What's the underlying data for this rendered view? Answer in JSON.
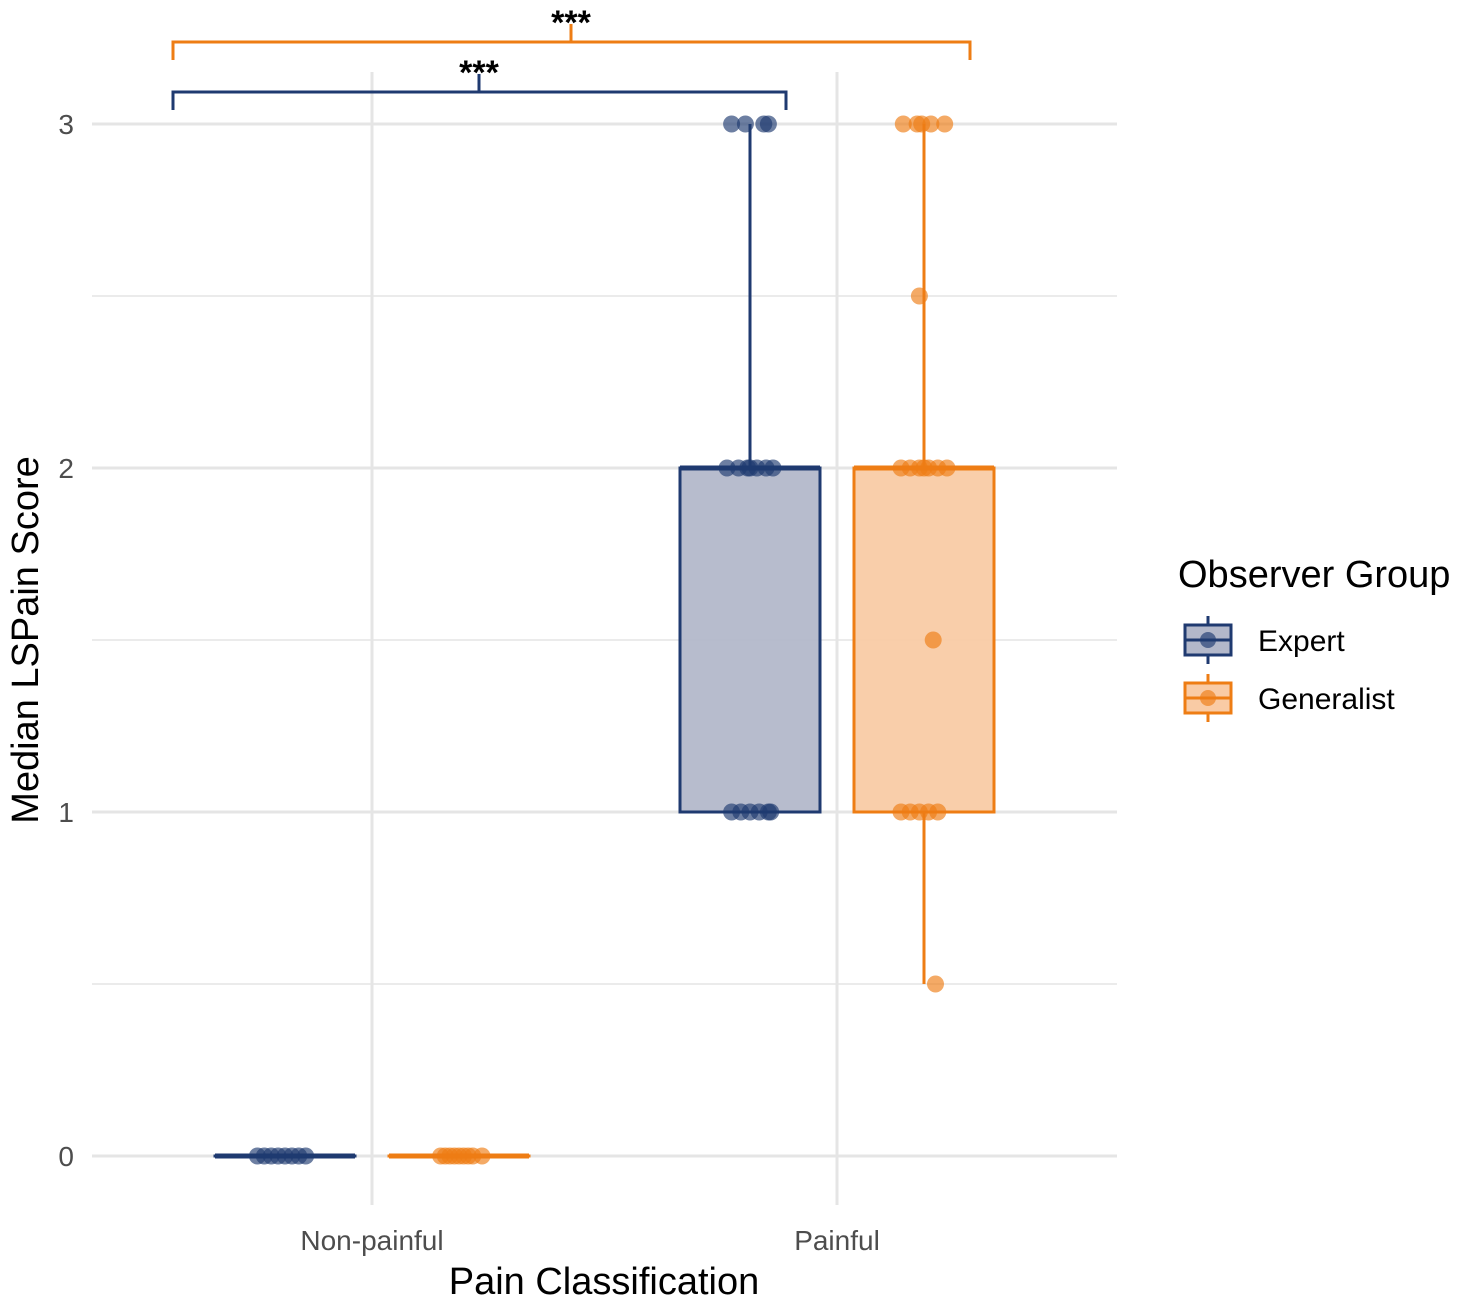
{
  "chart_data": {
    "type": "boxplot",
    "xlabel": "Pain Classification",
    "ylabel": "Median LSPain Score",
    "categories": [
      "Non-painful",
      "Painful"
    ],
    "ylim": [
      -0.15,
      3.1
    ],
    "y_ticks": [
      0,
      1,
      2,
      3
    ],
    "y_minor_ticks": [
      0.5,
      1.5,
      2.5
    ],
    "grid": true,
    "legend": {
      "title": "Observer Group",
      "position": "right"
    },
    "series": [
      {
        "name": "Expert",
        "color": "#1f3a70",
        "fill": "#b3b8ca",
        "boxes": [
          {
            "category": "Non-painful",
            "min": 0,
            "q1": 0,
            "median": 0,
            "q3": 0,
            "max": 0
          },
          {
            "category": "Painful",
            "min": 1,
            "q1": 1,
            "median": 2,
            "q3": 2,
            "max": 3
          }
        ],
        "points": [
          {
            "category": "Non-painful",
            "values": [
              0,
              0,
              0,
              0,
              0,
              0,
              0,
              0
            ],
            "jitter": [
              -0.12,
              -0.09,
              -0.06,
              -0.03,
              0.0,
              0.03,
              0.06,
              0.09
            ]
          },
          {
            "category": "Painful",
            "values": [
              3,
              3,
              3,
              3,
              2,
              2,
              2,
              2,
              2,
              2,
              2,
              1,
              1,
              1,
              1,
              1,
              1
            ],
            "jitter": [
              -0.08,
              -0.02,
              0.06,
              0.08,
              -0.1,
              -0.05,
              -0.01,
              0.03,
              0.07,
              0.1,
              0.0,
              -0.08,
              -0.04,
              0.0,
              0.04,
              0.08,
              0.09
            ]
          }
        ]
      },
      {
        "name": "Generalist",
        "color": "#ee7d14",
        "fill": "#f9cba5",
        "boxes": [
          {
            "category": "Non-painful",
            "min": 0,
            "q1": 0,
            "median": 0,
            "q3": 0,
            "max": 0
          },
          {
            "category": "Painful",
            "min": 0.5,
            "q1": 1,
            "median": 2,
            "q3": 2,
            "max": 3
          }
        ],
        "points": [
          {
            "category": "Non-painful",
            "values": [
              0,
              0,
              0,
              0,
              0,
              0,
              0,
              0,
              0
            ],
            "jitter": [
              -0.08,
              -0.06,
              -0.04,
              -0.02,
              0.0,
              0.02,
              0.04,
              0.06,
              0.1
            ]
          },
          {
            "category": "Painful",
            "values": [
              3,
              3,
              3,
              3,
              3,
              2.5,
              2,
              2,
              2,
              2,
              2,
              2,
              2,
              1.5,
              1,
              1,
              1,
              1,
              1,
              0.5
            ],
            "jitter": [
              -0.09,
              -0.03,
              -0.01,
              0.03,
              0.09,
              -0.02,
              -0.1,
              -0.06,
              -0.02,
              0.02,
              0.06,
              0.1,
              0.0,
              0.04,
              -0.1,
              -0.06,
              -0.02,
              0.02,
              0.06,
              0.05
            ]
          }
        ]
      }
    ],
    "annotations": [
      {
        "text": "***",
        "color": "#ee7d14",
        "from": "Non-painful:Expert-edge",
        "to": "Painful:Generalist-mid",
        "level": "upper"
      },
      {
        "text": "***",
        "color": "#1f3a70",
        "from": "Non-painful:Expert-edge",
        "to": "Painful:Expert-right",
        "level": "lower"
      }
    ]
  }
}
